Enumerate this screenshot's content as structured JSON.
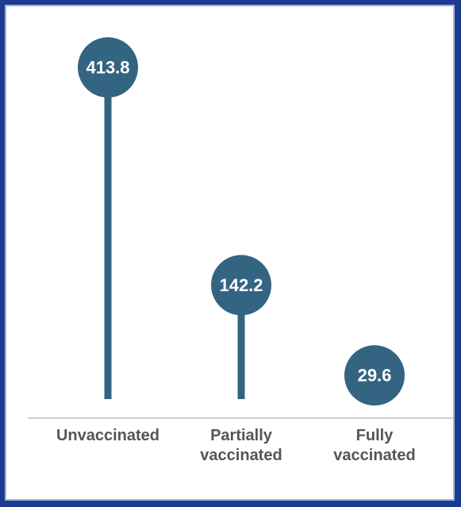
{
  "chart_data": {
    "type": "lollipop",
    "categories": [
      "Unvaccinated",
      "Partially vaccinated",
      "Fully vaccinated"
    ],
    "values": [
      413.8,
      142.2,
      29.6
    ],
    "color": "#336482"
  }
}
